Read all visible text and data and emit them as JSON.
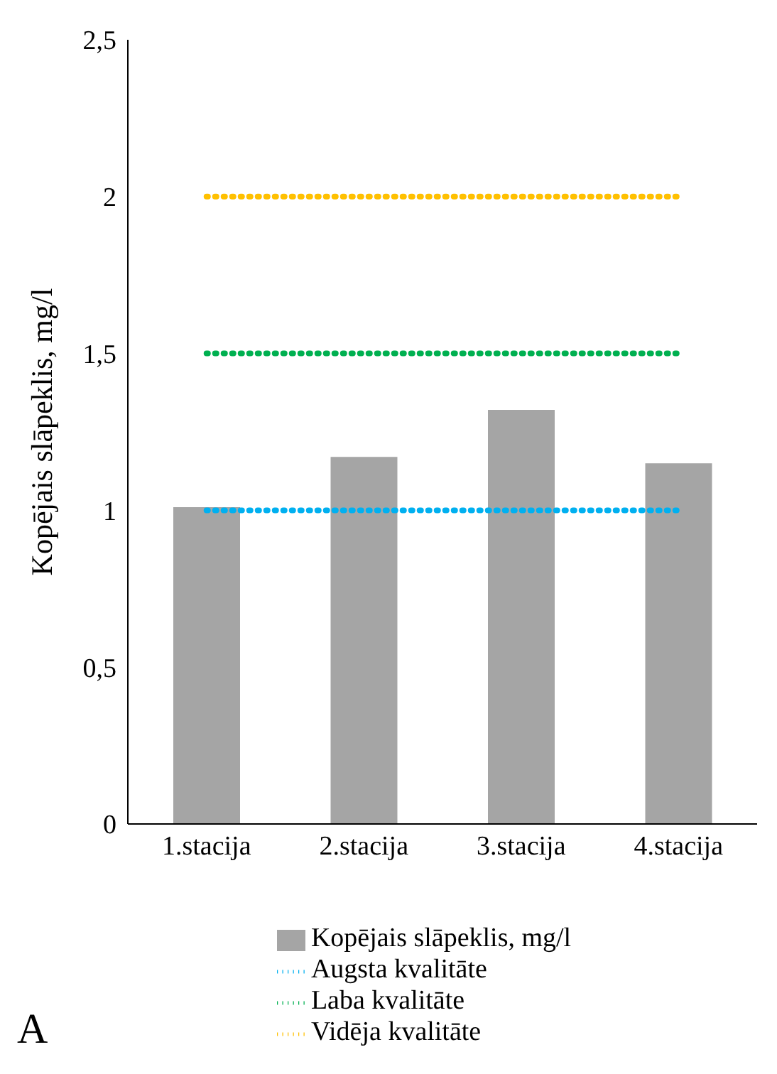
{
  "chart_data": {
    "type": "bar",
    "categories": [
      "1.stacija",
      "2.stacija",
      "3.stacija",
      "4.stacija"
    ],
    "ylabel": "Kopējais slāpeklis, mg/l",
    "ylim": [
      0,
      2.5
    ],
    "yticks": [
      0,
      {
        "value": 0.5,
        "label": "0,5"
      },
      1,
      {
        "value": 1.5,
        "label": "1,5"
      },
      2,
      {
        "value": 2.5,
        "label": "2,5"
      }
    ],
    "grid": false,
    "legend": "bottom",
    "marker": "none",
    "series": [
      {
        "name": "Kopējais slāpeklis, mg/l",
        "color": "#a5a5a5",
        "values": [
          1.01,
          1.17,
          1.32,
          1.15
        ]
      },
      {
        "name": "Augsta kvalitāte",
        "type": "line",
        "line_style": "dotted",
        "color": "#00b0f0",
        "values": [
          1,
          1,
          1,
          1
        ]
      },
      {
        "name": "Laba kvalitāte",
        "type": "line",
        "line_style": "dotted",
        "color": "#00b050",
        "values": [
          1.5,
          1.5,
          1.5,
          1.5
        ]
      },
      {
        "name": "Vidēja kvalitāte",
        "type": "line",
        "line_style": "dotted",
        "color": "#ffc000",
        "values": [
          2,
          2,
          2,
          2
        ]
      }
    ],
    "annotations": [
      "A"
    ]
  }
}
